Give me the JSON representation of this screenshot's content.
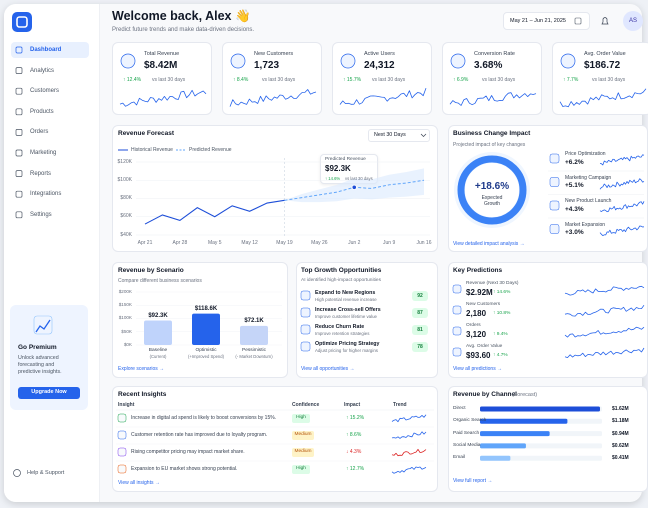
{
  "sidebar": {
    "nav": [
      "Dashboard",
      "Analytics",
      "Customers",
      "Products",
      "Orders",
      "Marketing",
      "Reports",
      "Integrations",
      "Settings"
    ],
    "premium": {
      "title": "Go Premium",
      "text": "Unlock advanced forecasting and predictive insights.",
      "button": "Upgrade Now"
    },
    "help": "Help & Support"
  },
  "header": {
    "title": "Welcome back, Alex 👋",
    "subtitle": "Predict future trends and make data-driven decisions.",
    "date_range": "May 21 – Jun 21, 2025",
    "avatar": "AS"
  },
  "kpis": [
    {
      "label": "Total Revenue",
      "value": "$8.42M",
      "change": "↑ 12.4%",
      "note": "vs last 30 days"
    },
    {
      "label": "New Customers",
      "value": "1,723",
      "change": "↑ 8.4%",
      "note": "vs last 30 days"
    },
    {
      "label": "Active Users",
      "value": "24,312",
      "change": "↑ 15.7%",
      "note": "vs last 30 days"
    },
    {
      "label": "Conversion Rate",
      "value": "3.68%",
      "change": "↑ 6.9%",
      "note": "vs last 30 days"
    },
    {
      "label": "Avg. Order Value",
      "value": "$186.72",
      "change": "↑ 7.7%",
      "note": "vs last 30 days"
    }
  ],
  "revenue_forecast": {
    "title": "Revenue Forecast",
    "period": "Next 30 Days",
    "categories": [
      "Apr 21",
      null,
      "Apr 28",
      null,
      "May 5",
      null,
      "May 12",
      null,
      "May 19",
      null,
      "May 26",
      null,
      "Jun 2",
      null,
      "Jun 9",
      null,
      "Jun 16"
    ],
    "series": [
      {
        "name": "Historical Revenue",
        "color": "#1d4ed8",
        "values": [
          52,
          62,
          56,
          70,
          60,
          72,
          66,
          75,
          78,
          null,
          null,
          null,
          null,
          null,
          null,
          null,
          null
        ]
      },
      {
        "name": "Predicted Revenue",
        "color": "#60a5fa",
        "values": [
          null,
          null,
          null,
          null,
          null,
          null,
          null,
          null,
          78,
          81,
          84,
          87,
          92.3,
          91,
          95,
          97,
          100
        ],
        "lower": [
          null,
          null,
          null,
          null,
          null,
          null,
          null,
          null,
          78,
          76,
          76,
          77,
          80,
          79,
          81,
          82,
          84
        ],
        "upper": [
          null,
          null,
          null,
          null,
          null,
          null,
          null,
          null,
          78,
          85,
          90,
          95,
          102,
          101,
          106,
          109,
          113
        ]
      }
    ],
    "ylim": [
      40,
      120
    ],
    "yticks": [
      {
        "value": 40,
        "label": "$40K"
      },
      {
        "value": 60,
        "label": "$60K"
      },
      {
        "value": 80,
        "label": "$80K"
      },
      {
        "value": 100,
        "label": "$100K"
      },
      {
        "value": 120,
        "label": "$120K"
      }
    ],
    "tooltip": {
      "title": "Predicted Revenue",
      "value": "$92.3K",
      "change": "↑ 14.6%",
      "note": "vs last 30 days"
    }
  },
  "business_impact": {
    "title": "Business Change Impact",
    "subtitle": "Projected impact of key changes",
    "center_value": "+18.6%",
    "center_label": "Expected Growth",
    "items": [
      {
        "label": "Price Optimization",
        "value": "+6.2%"
      },
      {
        "label": "Marketing Campaign",
        "value": "+5.1%"
      },
      {
        "label": "New Product Launch",
        "value": "+4.3%"
      },
      {
        "label": "Market Expansion",
        "value": "+3.0%"
      }
    ],
    "link": "View detailed impact analysis →"
  },
  "revenue_by_scenario": {
    "title": "Revenue by Scenario",
    "subtitle": "Compare different business scenarios",
    "categories": [
      "Baseline",
      "Optimistic",
      "Pessimistic"
    ],
    "sublabels": [
      "(Current)",
      "(+Improved Spend)",
      "(- Market Downturn)"
    ],
    "values": [
      92.3,
      118.6,
      72.1
    ],
    "value_labels": [
      "$92.3K",
      "$118.6K",
      "$72.1K"
    ],
    "colors": [
      "#bfd3fb",
      "#2563eb",
      "#c5d5f8"
    ],
    "ylim": [
      0,
      200
    ],
    "yticks": [
      {
        "value": 0,
        "label": "$0K"
      },
      {
        "value": 50,
        "label": "$50K"
      },
      {
        "value": 100,
        "label": "$100K"
      },
      {
        "value": 150,
        "label": "$150K"
      },
      {
        "value": 200,
        "label": "$200K"
      }
    ],
    "link": "Explore scenarios →"
  },
  "growth_opportunities": {
    "title": "Top Growth Opportunities",
    "subtitle": "AI identified high-impact opportunities",
    "items": [
      {
        "title": "Expand to New Regions",
        "desc": "High potential revenue increase",
        "score": "92"
      },
      {
        "title": "Increase Cross-sell Offers",
        "desc": "Improve customer lifetime value",
        "score": "87"
      },
      {
        "title": "Reduce Churn Rate",
        "desc": "Improve retention strategies",
        "score": "81"
      },
      {
        "title": "Optimize Pricing Strategy",
        "desc": "Adjust pricing for higher margins",
        "score": "78"
      }
    ],
    "link": "View all opportunities →"
  },
  "key_predictions": {
    "title": "Key Predictions",
    "items": [
      {
        "label": "Revenue (Next 30 Days)",
        "value": "$2.92M",
        "change": "↑ 14.6%"
      },
      {
        "label": "New Customers",
        "value": "2,180",
        "change": "↑ 10.8%"
      },
      {
        "label": "Orders",
        "value": "3,120",
        "change": "↑ 9.4%"
      },
      {
        "label": "Avg. Order Value",
        "value": "$93.60",
        "change": "↑ 4.7%"
      }
    ],
    "link": "View all predictions →"
  },
  "recent_insights": {
    "title": "Recent Insights",
    "columns": [
      "Insight",
      "Confidence",
      "Impact",
      "Trend"
    ],
    "rows": [
      {
        "text": "Increase in digital ad spend is likely to boost conversions by 15%.",
        "confidence": "High",
        "impact": "↑ 15.2%"
      },
      {
        "text": "Customer retention rate has improved due to loyalty program.",
        "confidence": "Medium",
        "impact": "↑ 8.6%"
      },
      {
        "text": "Rising competitor pricing may impact market share.",
        "confidence": "Medium",
        "impact": "↓ 4.3%"
      },
      {
        "text": "Expansion to EU market shows strong potential.",
        "confidence": "High",
        "impact": "↑ 12.7%"
      }
    ],
    "link": "View all insights →"
  },
  "revenue_by_channel": {
    "title": "Revenue by Channel",
    "subtitle": "(Forecast)",
    "categories": [
      "Direct",
      "Organic Search",
      "Paid Search",
      "Social Media",
      "Email"
    ],
    "values": [
      1.62,
      1.18,
      0.94,
      0.62,
      0.41
    ],
    "value_labels": [
      "$1.62M",
      "$1.18M",
      "$0.94M",
      "$0.62M",
      "$0.41M"
    ],
    "colors": [
      "#1d4ed8",
      "#2563eb",
      "#3b82f6",
      "#60a5fa",
      "#93c5fd"
    ],
    "link": "View full report →"
  }
}
